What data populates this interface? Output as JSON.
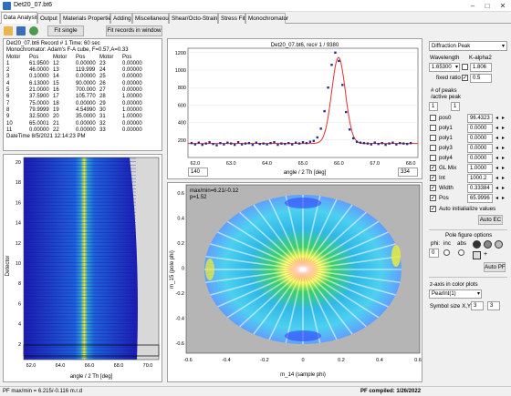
{
  "window": {
    "title": "Det20_07.bt6"
  },
  "tabs": [
    {
      "label": "Data Analysis"
    },
    {
      "label": "Output"
    },
    {
      "label": "Materials Properties"
    },
    {
      "label": "Adding"
    },
    {
      "label": "Miscellaneous"
    },
    {
      "label": "Shear/Octo-Strain"
    },
    {
      "label": "Stress Fit"
    },
    {
      "label": "Monochromator"
    }
  ],
  "toolbar": {
    "fit_single": "Fit single",
    "fit_records": "Fit records in window"
  },
  "info": {
    "line1": "Det20_07.bt6   Record # 1  Time: 60 sec",
    "line2": "Monochromator: Adam's F-A cube, F=0.57,A=0.33",
    "headers": [
      "Motor",
      "Pos",
      "Motor",
      "Pos",
      "Motor",
      "Pos"
    ],
    "rows": [
      [
        "1",
        "61.9500",
        "12",
        "0.00000",
        "23",
        "0.00000"
      ],
      [
        "2",
        "46.0000",
        "13",
        "119.999",
        "24",
        "0.00000"
      ],
      [
        "3",
        "0.10000",
        "14",
        "0.00000",
        "25",
        "0.00000"
      ],
      [
        "4",
        "6.13000",
        "15",
        "90.0000",
        "26",
        "0.00000"
      ],
      [
        "5",
        "21.0000",
        "16",
        "700.000",
        "27",
        "0.00000"
      ],
      [
        "6",
        "37.5900",
        "17",
        "105.770",
        "28",
        "1.00000"
      ],
      [
        "7",
        "75.0000",
        "18",
        "0.00000",
        "29",
        "0.00000"
      ],
      [
        "8",
        "79.9999",
        "19",
        "4.54990",
        "30",
        "1.00000"
      ],
      [
        "9",
        "32.5000",
        "20",
        "35.0000",
        "31",
        "1.00000"
      ],
      [
        "10",
        "65.0001",
        "21",
        "0.00000",
        "32",
        "0.00000"
      ],
      [
        "11",
        "0.00000",
        "22",
        "0.00000",
        "33",
        "0.00000"
      ]
    ],
    "datetime": "DateTime 8/5/2021 12:14:23 PM"
  },
  "detector_plot": {
    "ylabel": "Detector",
    "xlabel": "angle / 2 Th [deg]",
    "yticks": [
      "20",
      "18",
      "16",
      "14",
      "12",
      "10",
      "8",
      "6",
      "4",
      "2"
    ],
    "xticks": [
      "62.0",
      "64.0",
      "66.0",
      "68.0",
      "70.0"
    ]
  },
  "peak_plot": {
    "title": "Det20_07.bt6, rec# 1 / 9380",
    "xlabel": "angle / 2 Th [deg]",
    "yticks": [
      "1200",
      "1000",
      "800",
      "600",
      "400",
      "200"
    ],
    "xticks": [
      "62.0",
      "63.0",
      "64.0",
      "65.0",
      "66.0",
      "67.0",
      "68.0"
    ],
    "range_min": "140",
    "range_max": "334"
  },
  "chart_data": {
    "type": "scatter",
    "title": "Det20_07.bt6, rec# 1 / 9380",
    "xlabel": "angle / 2 Th [deg]",
    "ylabel": "",
    "xlim": [
      61.8,
      68.2
    ],
    "ylim": [
      0,
      1250
    ],
    "baseline": 160,
    "peak_center": 65.99,
    "peak_height": 1145,
    "peak_width": 0.33,
    "x": [
      61.9,
      62.0,
      62.1,
      62.2,
      62.3,
      62.4,
      62.5,
      62.6,
      62.7,
      62.8,
      62.9,
      63.0,
      63.1,
      63.2,
      63.3,
      63.4,
      63.5,
      63.6,
      63.7,
      63.8,
      63.9,
      64.0,
      64.1,
      64.2,
      64.3,
      64.4,
      64.5,
      64.6,
      64.7,
      64.8,
      64.9,
      65.0,
      65.1,
      65.2,
      65.3,
      65.4,
      65.5,
      65.6,
      65.7,
      65.8,
      65.9,
      66.0,
      66.1,
      66.2,
      66.3,
      66.4,
      66.5,
      66.6,
      66.7,
      66.8,
      66.9,
      67.0,
      67.1,
      67.2,
      67.3,
      67.4,
      67.5,
      67.6,
      67.7,
      67.8,
      67.9,
      68.0
    ],
    "y": [
      165,
      150,
      170,
      145,
      160,
      175,
      155,
      140,
      165,
      150,
      170,
      160,
      145,
      175,
      150,
      160,
      165,
      145,
      170,
      155,
      160,
      150,
      165,
      175,
      145,
      160,
      155,
      165,
      150,
      170,
      160,
      175,
      165,
      180,
      190,
      230,
      330,
      530,
      800,
      1060,
      1200,
      1105,
      830,
      520,
      320,
      220,
      180,
      170,
      165,
      160,
      150,
      170,
      155,
      165,
      145,
      160,
      170,
      150,
      165,
      160,
      155,
      165
    ]
  },
  "pole_plot": {
    "label1": "max/min=6.21/-0.12",
    "label2": "p=1.52",
    "ylabel": "m_15 (pole phi)",
    "xlabel": "m_14 (sample phi)",
    "yticks": [
      "0.6",
      "0.4",
      "0.2",
      "0",
      "-0.2",
      "-0.4",
      "-0.6"
    ],
    "xticks": [
      "-0.6",
      "-0.4",
      "-0.2",
      "0",
      "0.2",
      "0.4",
      "0.6"
    ]
  },
  "side": {
    "peak_type": "Diffraction Peak",
    "wavelength_label": "Wavelength",
    "kalpha_label": "K-alpha2",
    "wavelength": "1.65300",
    "kalpha_value": "1.806",
    "fixed_ratio_label": "fixed ratio",
    "fixed_ratio": "0.5",
    "npeaks_label1": "# of peaks",
    "npeaks_label2": "/active peak",
    "npeaks": "1",
    "active_peak": "1",
    "params": [
      {
        "label": "pos0",
        "value": "96.4323",
        "checked": false
      },
      {
        "label": "poly1",
        "value": "0.0000",
        "checked": false
      },
      {
        "label": "poly1",
        "value": "0.0000",
        "checked": false
      },
      {
        "label": "poly3",
        "value": "0.0000",
        "checked": false
      },
      {
        "label": "poly4",
        "value": "0.0000",
        "checked": false
      },
      {
        "label": "GL Mix",
        "value": "1.0000",
        "checked": true
      },
      {
        "label": "Int",
        "value": "1000.2",
        "checked": true
      },
      {
        "label": "Width",
        "value": "0.33384",
        "checked": true
      },
      {
        "label": "Pos",
        "value": "65.9996",
        "checked": true
      }
    ],
    "auto_init": "Auto initialialize values",
    "auto_ec": "Auto EC",
    "pole_options": "Pole figure options",
    "phi_label": "phi:",
    "inc_label": "inc",
    "abs_label": "abs",
    "phi_value": "0",
    "auto_pf": "Auto PF",
    "zaxis_label": "z-axis in color plots",
    "zaxis_value": "PearInt(1)",
    "symbol_label": "Symbol size X,Y",
    "symbol_x": "3",
    "symbol_y": "3"
  },
  "status": {
    "left": "PF max/min = 6.215/-0.116 m.r.d",
    "right": "PF compiled: 1/26/2022"
  },
  "colors": {
    "accent": "#2e6fbd",
    "fit_line": "#e03030",
    "points": "#2b2b8a",
    "detector_bg": "#1a1aa8"
  }
}
